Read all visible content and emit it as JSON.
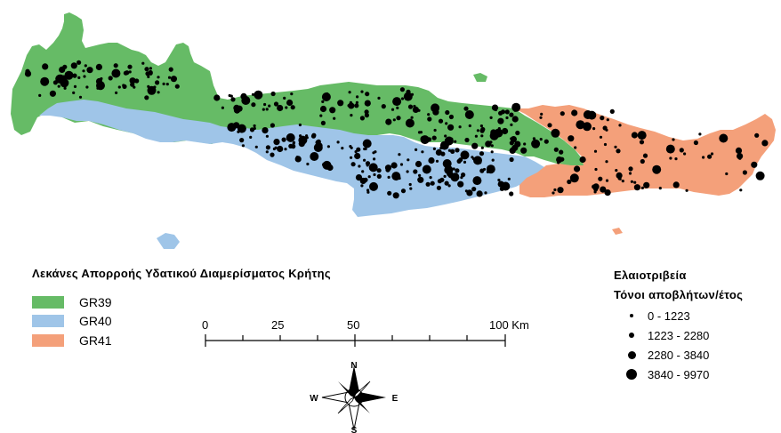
{
  "basin_legend": {
    "title": "Λεκάνες Απορροής Υδατικού Διαμερίσματος Κρήτης",
    "items": [
      {
        "label": "GR39",
        "color": "#66bb66"
      },
      {
        "label": "GR40",
        "color": "#9fc5e8"
      },
      {
        "label": "GR41",
        "color": "#f4a07a"
      }
    ]
  },
  "olive_legend": {
    "title": "Ελαιοτριβεία",
    "subtitle": "Τόνοι αποβλήτων/έτος",
    "classes": [
      {
        "label": "0 - 1223"
      },
      {
        "label": "1223 - 2280"
      },
      {
        "label": "2280 - 3840"
      },
      {
        "label": "3840 - 9970"
      }
    ]
  },
  "scale_bar": {
    "labels": [
      "0",
      "25",
      "50",
      "100 Km"
    ]
  },
  "north_arrow": {
    "n": "N",
    "s": "S",
    "e": "E",
    "w": "W"
  }
}
